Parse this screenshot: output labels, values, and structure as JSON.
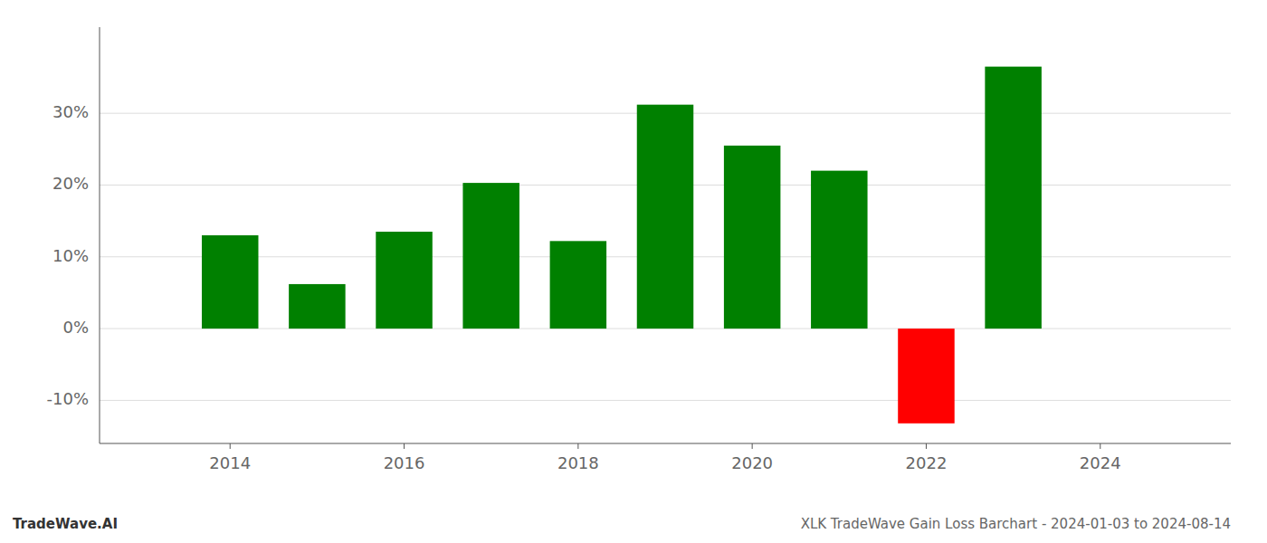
{
  "chart_data": {
    "type": "bar",
    "title": "XLK TradeWave Gain Loss Barchart - 2024-01-03 to 2024-08-14",
    "annotations": [
      "TradeWave.AI"
    ],
    "x": [
      2014,
      2015,
      2016,
      2017,
      2018,
      2019,
      2020,
      2021,
      2022,
      2023
    ],
    "values": [
      13.0,
      6.2,
      13.5,
      20.3,
      12.2,
      31.2,
      25.5,
      22.0,
      -13.2,
      36.5
    ],
    "colors": [
      "#008000",
      "#008000",
      "#008000",
      "#008000",
      "#008000",
      "#008000",
      "#008000",
      "#008000",
      "#ff0000",
      "#008000"
    ],
    "xlim": [
      2012.5,
      2025.5
    ],
    "xticks": [
      2014,
      2016,
      2018,
      2020,
      2022,
      2024
    ],
    "ylim": [
      -16,
      42
    ],
    "yticks": [
      {
        "value": -10,
        "label": "-10%"
      },
      {
        "value": 0,
        "label": "0%"
      },
      {
        "value": 10,
        "label": "10%"
      },
      {
        "value": 20,
        "label": "20%"
      },
      {
        "value": 30,
        "label": "30%"
      }
    ],
    "grid": true
  }
}
